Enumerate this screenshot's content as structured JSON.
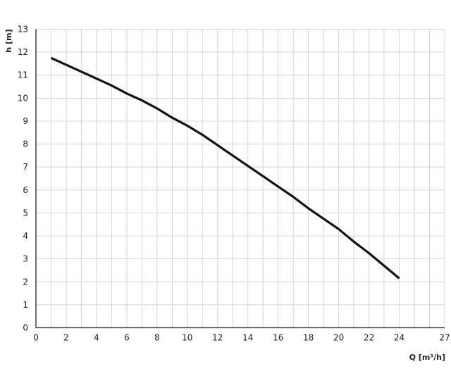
{
  "chart_data": {
    "type": "line",
    "title": "",
    "xlabel": "Q [m³/h]",
    "ylabel": "h [m]",
    "xlim": [
      0,
      27
    ],
    "ylim": [
      0,
      13
    ],
    "x_ticks": [
      0,
      2,
      4,
      6,
      8,
      10,
      12,
      14,
      16,
      18,
      20,
      22,
      24,
      27
    ],
    "y_ticks": [
      0,
      1,
      2,
      3,
      4,
      5,
      6,
      7,
      8,
      9,
      10,
      11,
      12,
      13
    ],
    "grid": true,
    "series": [
      {
        "color": "#111111",
        "x": [
          1,
          2,
          3,
          4,
          5,
          6,
          7,
          8,
          9,
          10,
          11,
          12,
          13,
          14,
          15,
          16,
          17,
          18,
          19,
          20,
          21,
          22,
          23,
          24
        ],
        "y": [
          11.75,
          11.45,
          11.15,
          10.85,
          10.55,
          10.2,
          9.9,
          9.55,
          9.15,
          8.8,
          8.4,
          7.95,
          7.5,
          7.05,
          6.6,
          6.15,
          5.7,
          5.2,
          4.75,
          4.3,
          3.75,
          3.25,
          2.7,
          2.15
        ]
      }
    ]
  }
}
